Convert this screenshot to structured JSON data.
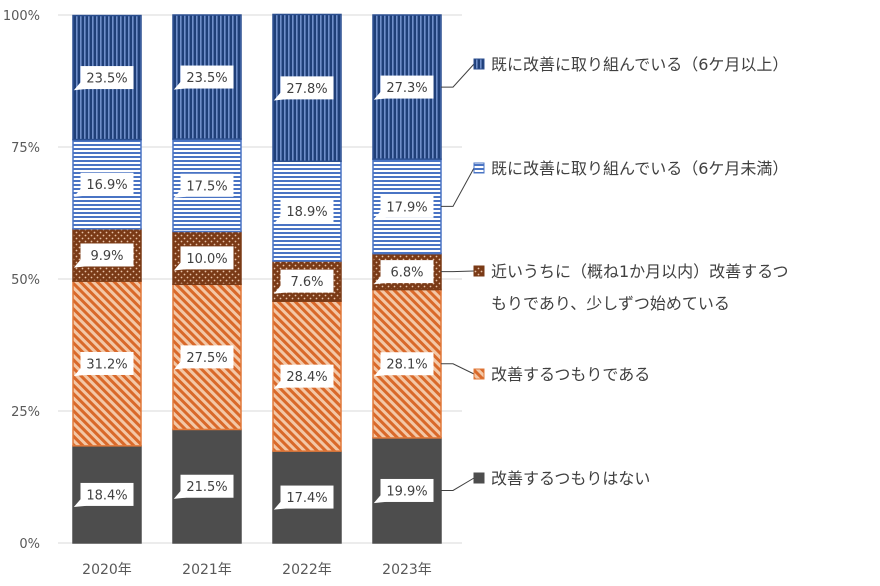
{
  "chart_data": {
    "type": "bar",
    "stacked": true,
    "percent_stacked": true,
    "categories": [
      "2020年",
      "2021年",
      "2022年",
      "2023年"
    ],
    "ylim": [
      0,
      100
    ],
    "yticks": [
      "0%",
      "25%",
      "50%",
      "75%",
      "100%"
    ],
    "ytick_values": [
      0,
      25,
      50,
      75,
      100
    ],
    "grid": true,
    "legend_position": "right",
    "series": [
      {
        "name": "改善するつもりはない",
        "values": [
          18.4,
          21.5,
          17.4,
          19.9
        ],
        "labels": [
          "18.4%",
          "21.5%",
          "17.4%",
          "19.9%"
        ],
        "color": "#4d4d4d",
        "pattern": "solid"
      },
      {
        "name": "改善するつもりである",
        "values": [
          31.2,
          27.5,
          28.4,
          28.1
        ],
        "labels": [
          "31.2%",
          "27.5%",
          "28.4%",
          "28.1%"
        ],
        "color": "#e0793a",
        "pattern": "diagonal"
      },
      {
        "name": "近いうちに（概ね1か月以内）改善するつもりであり、少しずつ始めている",
        "values": [
          9.9,
          10.0,
          7.6,
          6.8
        ],
        "labels": [
          "9.9%",
          "10.0%",
          "7.6%",
          "6.8%"
        ],
        "color": "#7a3a16",
        "pattern": "dots",
        "legend_lines": [
          "近いうちに（概ね1か月以内）改善するつ",
          "もりであり、少しずつ始めている"
        ]
      },
      {
        "name": "既に改善に取り組んでいる（6ケ月未満）",
        "values": [
          16.9,
          17.5,
          18.9,
          17.9
        ],
        "labels": [
          "16.9%",
          "17.5%",
          "18.9%",
          "17.9%"
        ],
        "color": "#4a74c4",
        "pattern": "horizontal"
      },
      {
        "name": "既に改善に取り組んでいる（6ケ月以上）",
        "values": [
          23.5,
          23.5,
          27.8,
          27.3
        ],
        "labels": [
          "23.5%",
          "23.5%",
          "27.8%",
          "27.3%"
        ],
        "color": "#2c4f8f",
        "pattern": "vertical"
      }
    ]
  }
}
